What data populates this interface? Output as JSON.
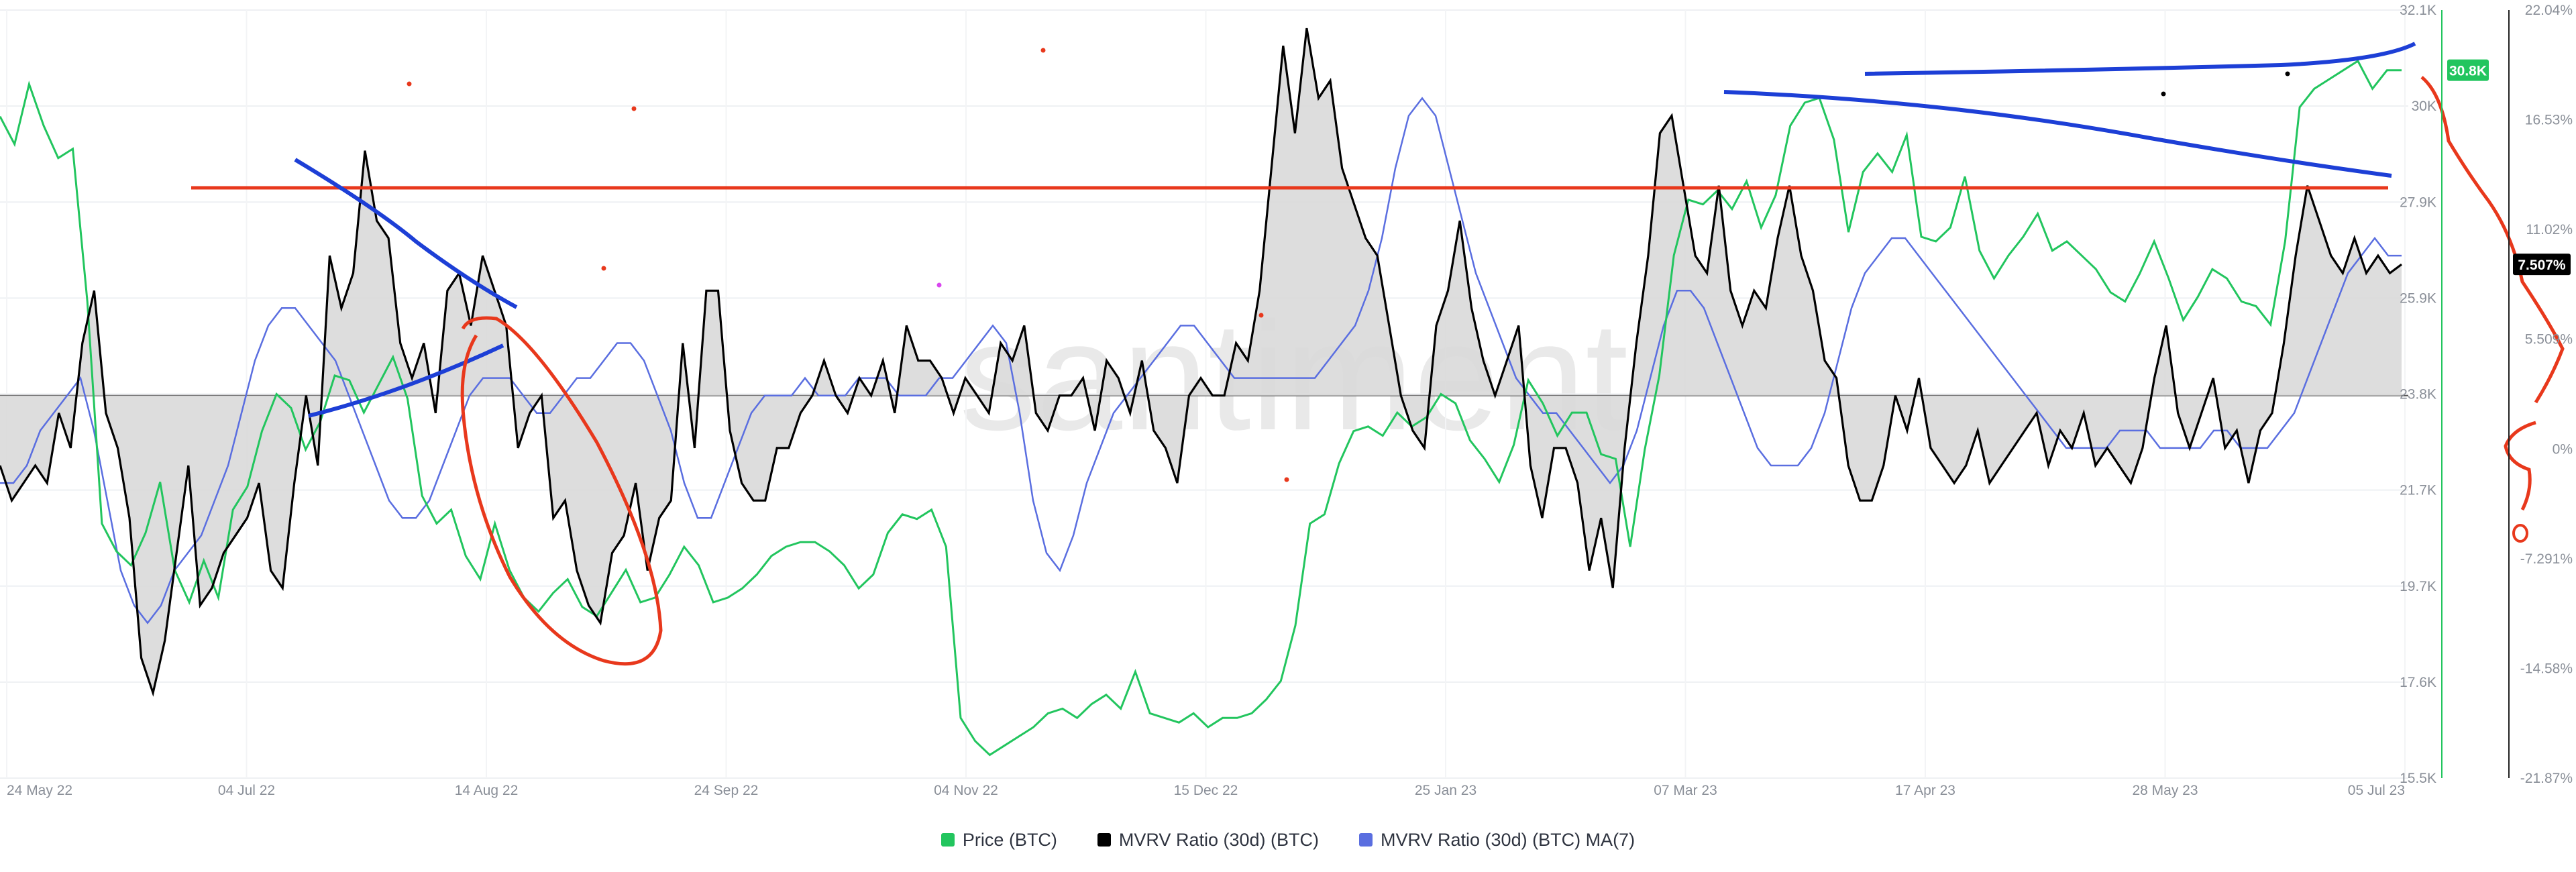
{
  "watermark": "santiment",
  "colors": {
    "price": "#22c55e",
    "mvrv": "#000000",
    "mvrv_ma": "#5a6ee0",
    "fill": "#d9d9d9",
    "annotation_blue": "#1d3fd6",
    "annotation_red": "#e8381c",
    "price_badge": "#22c55e",
    "mvrv_badge": "#000000"
  },
  "legend": [
    {
      "label": "Price (BTC)",
      "color": "#22c55e"
    },
    {
      "label": "MVRV Ratio (30d) (BTC)",
      "color": "#000000"
    },
    {
      "label": "MVRV Ratio (30d) (BTC) MA(7)",
      "color": "#5a6ee0"
    }
  ],
  "badges": {
    "price": "30.8K",
    "mvrv": "7.507%"
  },
  "chart_data": {
    "type": "line",
    "x_ticks": [
      "24 May 22",
      "04 Jul 22",
      "14 Aug 22",
      "24 Sep 22",
      "04 Nov 22",
      "15 Dec 22",
      "25 Jan 23",
      "07 Mar 23",
      "17 Apr 23",
      "28 May 23",
      "05 Jul 23"
    ],
    "price_axis": {
      "ticks": [
        "32.1K",
        "30K",
        "27.9K",
        "25.9K",
        "23.8K",
        "21.7K",
        "19.7K",
        "17.6K",
        "15.5K"
      ],
      "range": [
        15.5,
        32.1
      ]
    },
    "mvrv_axis": {
      "ticks": [
        "22.04%",
        "16.53%",
        "11.02%",
        "5.509%",
        "0%",
        "-7.291%",
        "-14.58%",
        "-21.87%"
      ],
      "range": [
        -21.87,
        22.04
      ]
    },
    "series": [
      {
        "name": "Price (BTC)",
        "axis": "price",
        "values": [
          29.8,
          29.2,
          30.5,
          29.6,
          28.9,
          29.1,
          25.8,
          21.0,
          20.4,
          20.1,
          20.8,
          21.9,
          20.0,
          19.3,
          20.2,
          19.4,
          21.3,
          21.8,
          23.0,
          23.8,
          23.5,
          22.6,
          23.2,
          24.2,
          24.1,
          23.4,
          24.0,
          24.6,
          23.7,
          21.6,
          21.0,
          21.3,
          20.3,
          19.8,
          21.0,
          20.0,
          19.4,
          19.1,
          19.5,
          19.8,
          19.2,
          19.0,
          19.5,
          20.0,
          19.3,
          19.4,
          19.9,
          20.5,
          20.1,
          19.3,
          19.4,
          19.6,
          19.9,
          20.3,
          20.5,
          20.6,
          20.6,
          20.4,
          20.1,
          19.6,
          19.9,
          20.8,
          21.2,
          21.1,
          21.3,
          20.5,
          16.8,
          16.3,
          16.0,
          16.2,
          16.4,
          16.6,
          16.9,
          17.0,
          16.8,
          17.1,
          17.3,
          17.0,
          17.8,
          16.9,
          16.8,
          16.7,
          16.9,
          16.6,
          16.8,
          16.8,
          16.9,
          17.2,
          17.6,
          18.8,
          21.0,
          21.2,
          22.3,
          23.0,
          23.1,
          22.9,
          23.4,
          23.1,
          23.3,
          23.8,
          23.6,
          22.8,
          22.4,
          21.9,
          22.7,
          24.1,
          23.6,
          22.9,
          23.4,
          23.4,
          22.5,
          22.4,
          20.5,
          22.6,
          24.2,
          26.8,
          28.0,
          27.9,
          28.2,
          27.8,
          28.4,
          27.4,
          28.1,
          29.6,
          30.1,
          30.2,
          29.3,
          27.3,
          28.6,
          29.0,
          28.6,
          29.4,
          27.2,
          27.1,
          27.4,
          28.5,
          26.9,
          26.3,
          26.8,
          27.2,
          27.7,
          26.9,
          27.1,
          26.8,
          26.5,
          26.0,
          25.8,
          26.4,
          27.1,
          26.3,
          25.4,
          25.9,
          26.5,
          26.3,
          25.8,
          25.7,
          25.3,
          27.1,
          30.0,
          30.4,
          30.6,
          30.8,
          31.0,
          30.4,
          30.8,
          30.8
        ]
      },
      {
        "name": "MVRV Ratio (30d) (BTC)",
        "axis": "mvrv",
        "values": [
          -4,
          -6,
          -5,
          -4,
          -5,
          -1,
          -3,
          3,
          6,
          -1,
          -3,
          -7,
          -15,
          -17,
          -14,
          -9,
          -4,
          -12,
          -11,
          -9,
          -8,
          -7,
          -5,
          -10,
          -11,
          -5,
          0,
          -4,
          8,
          5,
          7,
          14,
          10,
          9,
          3,
          1,
          3,
          -1,
          6,
          7,
          4,
          8,
          6,
          4,
          -3,
          -1,
          0,
          -7,
          -6,
          -10,
          -12,
          -13,
          -9,
          -8,
          -5,
          -10,
          -7,
          -6,
          3,
          -3,
          6,
          6,
          -2,
          -5,
          -6,
          -6,
          -3,
          -3,
          -1,
          0,
          2,
          0,
          -1,
          1,
          0,
          2,
          -1,
          4,
          2,
          2,
          1,
          -1,
          1,
          0,
          -1,
          3,
          2,
          4,
          -1,
          -2,
          0,
          0,
          1,
          -2,
          2,
          1,
          -1,
          2,
          -2,
          -3,
          -5,
          0,
          1,
          0,
          0,
          3,
          2,
          6,
          13,
          20,
          15,
          21,
          17,
          18,
          13,
          11,
          9,
          8,
          4,
          0,
          -2,
          -3,
          4,
          6,
          10,
          5,
          2,
          0,
          2,
          4,
          -4,
          -7,
          -3,
          -3,
          -5,
          -10,
          -7,
          -11,
          -3,
          3,
          8,
          15,
          16,
          12,
          8,
          7,
          12,
          6,
          4,
          6,
          5,
          9,
          12,
          8,
          6,
          2,
          1,
          -4,
          -6,
          -6,
          -4,
          0,
          -2,
          1,
          -3,
          -4,
          -5,
          -4,
          -2,
          -5,
          -4,
          -3,
          -2,
          -1,
          -4,
          -2,
          -3,
          -1,
          -4,
          -3,
          -4,
          -5,
          -3,
          1,
          4,
          -1,
          -3,
          -1,
          1,
          -3,
          -2,
          -5,
          -2,
          -1,
          3,
          8,
          12,
          10,
          8,
          7,
          9,
          7,
          8,
          7,
          7.5
        ]
      },
      {
        "name": "MVRV Ratio (30d) (BTC) MA(7)",
        "axis": "mvrv",
        "values": [
          -5,
          -5,
          -4,
          -2,
          -1,
          0,
          1,
          -2,
          -6,
          -10,
          -12,
          -13,
          -12,
          -10,
          -9,
          -8,
          -6,
          -4,
          -1,
          2,
          4,
          5,
          5,
          4,
          3,
          2,
          0,
          -2,
          -4,
          -6,
          -7,
          -7,
          -6,
          -4,
          -2,
          0,
          1,
          1,
          1,
          0,
          -1,
          -1,
          0,
          1,
          1,
          2,
          3,
          3,
          2,
          0,
          -2,
          -5,
          -7,
          -7,
          -5,
          -3,
          -1,
          0,
          0,
          0,
          1,
          0,
          0,
          0,
          1,
          1,
          1,
          0,
          0,
          0,
          1,
          1,
          2,
          3,
          4,
          3,
          -1,
          -6,
          -9,
          -10,
          -8,
          -5,
          -3,
          -1,
          0,
          1,
          2,
          3,
          4,
          4,
          3,
          2,
          1,
          1,
          1,
          1,
          1,
          1,
          1,
          2,
          3,
          4,
          6,
          9,
          13,
          16,
          17,
          16,
          13,
          10,
          7,
          5,
          3,
          1,
          0,
          -1,
          -1,
          -2,
          -3,
          -4,
          -5,
          -4,
          -2,
          1,
          4,
          6,
          6,
          5,
          3,
          1,
          -1,
          -3,
          -4,
          -4,
          -4,
          -3,
          -1,
          2,
          5,
          7,
          8,
          9,
          9,
          8,
          7,
          6,
          5,
          4,
          3,
          2,
          1,
          0,
          -1,
          -2,
          -3,
          -3,
          -3,
          -3,
          -2,
          -2,
          -2,
          -3,
          -3,
          -3,
          -3,
          -2,
          -2,
          -3,
          -3,
          -3,
          -2,
          -1,
          1,
          3,
          5,
          7,
          8,
          9,
          8,
          8
        ]
      }
    ],
    "reference_lines": [
      {
        "axis": "mvrv",
        "value": 0
      }
    ],
    "grid": true,
    "legend_position": "bottom"
  }
}
